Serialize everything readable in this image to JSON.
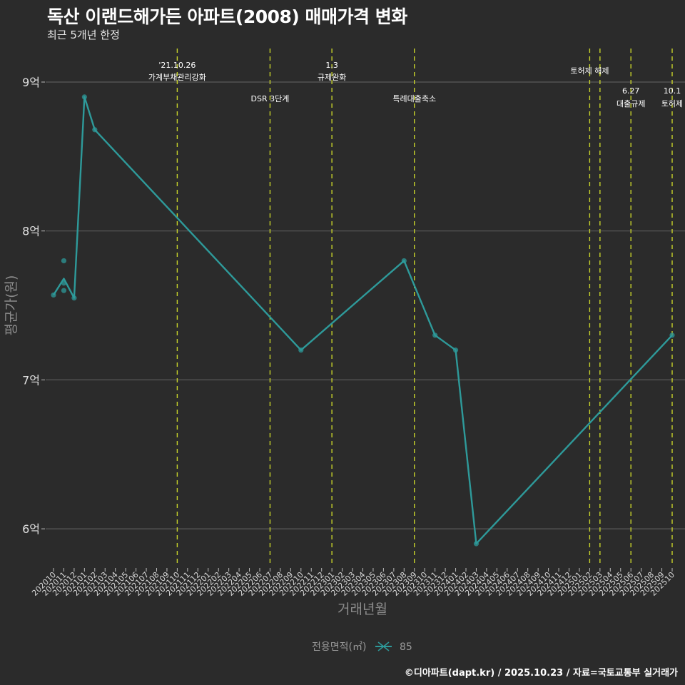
{
  "header": {
    "title": "독산 이랜드해가든 아파트(2008) 매매가격 변화",
    "subtitle": "최근 5개년 한정"
  },
  "caption": "©디아파트(dapt.kr) / 2025.10.23 / 자료=국토교통부 실거래가",
  "colors": {
    "background": "#2b2b2b",
    "series": "#2e9a9a",
    "vline": "#c8d32a",
    "grid": "#5a5a5a"
  },
  "chart_data": {
    "type": "line",
    "title": "독산 이랜드해가든 아파트(2008) 매매가격 변화",
    "subtitle": "최근 5개년 한정",
    "xlabel": "거래년월",
    "ylabel": "평균가(원)",
    "ylim": [
      5.8,
      9.2
    ],
    "y_ticks": [
      {
        "value": 6,
        "label": "6억"
      },
      {
        "value": 7,
        "label": "7억"
      },
      {
        "value": 8,
        "label": "8억"
      },
      {
        "value": 9,
        "label": "9억"
      }
    ],
    "x_ticks": [
      "202010",
      "202011",
      "202012",
      "202101",
      "202102",
      "202103",
      "202104",
      "202105",
      "202106",
      "202107",
      "202108",
      "202109",
      "202110",
      "202111",
      "202112",
      "202201",
      "202202",
      "202203",
      "202204",
      "202205",
      "202206",
      "202207",
      "202208",
      "202209",
      "202210",
      "202211",
      "202212",
      "202301",
      "202302",
      "202303",
      "202304",
      "202305",
      "202306",
      "202307",
      "202308",
      "202309",
      "202310",
      "202311",
      "202312",
      "202401",
      "202402",
      "202403",
      "202404",
      "202405",
      "202406",
      "202407",
      "202408",
      "202409",
      "202410",
      "202411",
      "202412",
      "202501",
      "202502",
      "202503",
      "202504",
      "202505",
      "202506",
      "202507",
      "202508",
      "202509",
      "202510"
    ],
    "grid": true,
    "legend": {
      "title": "전용면적(㎡)",
      "position": "bottom",
      "entries": [
        "85"
      ]
    },
    "series": [
      {
        "name": "85",
        "x": [
          "202010",
          "202011",
          "202012",
          "202101",
          "202102",
          "202210",
          "202308",
          "202311",
          "202401",
          "202403",
          "202510"
        ],
        "values": [
          7.57,
          7.68,
          7.55,
          8.9,
          8.68,
          7.2,
          7.8,
          7.3,
          7.2,
          5.9,
          7.3
        ],
        "points": [
          {
            "x": "202010",
            "y": 7.57
          },
          {
            "x": "202011",
            "y": 7.8
          },
          {
            "x": "202011",
            "y": 7.65
          },
          {
            "x": "202011",
            "y": 7.6
          },
          {
            "x": "202012",
            "y": 7.55
          },
          {
            "x": "202101",
            "y": 8.9
          },
          {
            "x": "202102",
            "y": 8.68
          },
          {
            "x": "202210",
            "y": 7.2
          },
          {
            "x": "202308",
            "y": 7.8
          },
          {
            "x": "202311",
            "y": 7.3
          },
          {
            "x": "202401",
            "y": 7.2
          },
          {
            "x": "202403",
            "y": 5.9
          },
          {
            "x": "202510",
            "y": 7.3
          }
        ]
      }
    ],
    "annotations": [
      {
        "x": "202110",
        "lines": [
          "'21.10.26",
          "가계부채관리강화"
        ],
        "row": 0
      },
      {
        "x": "202207",
        "lines": [
          "DSR 3단계"
        ],
        "row": 1
      },
      {
        "x": "202301",
        "lines": [
          "1.3",
          "규제완화"
        ],
        "row": 0
      },
      {
        "x": "202309",
        "lines": [
          "특례대출축소"
        ],
        "row": 1
      },
      {
        "x": "202502",
        "lines": [
          "토허제 해제"
        ],
        "row": 2
      },
      {
        "x": "202503",
        "lines": [],
        "row": 2
      },
      {
        "x": "202506",
        "lines": [
          "6.27",
          "대출규제"
        ],
        "row": 3
      },
      {
        "x": "202510",
        "lines": [
          "10.1",
          "토허제"
        ],
        "row": 3
      }
    ]
  }
}
